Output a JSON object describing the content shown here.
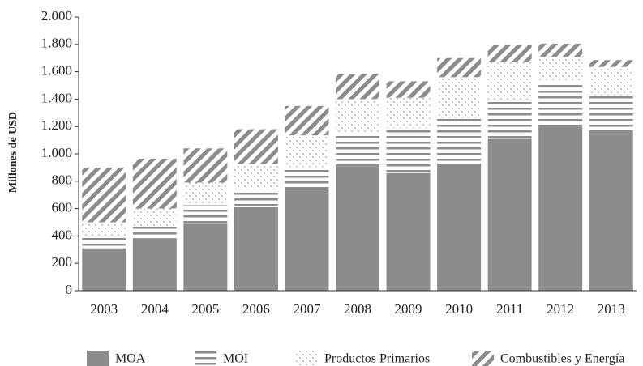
{
  "chart_data": {
    "type": "stacked-bar",
    "y_label": "Millones de USD",
    "categories": [
      "2003",
      "2004",
      "2005",
      "2006",
      "2007",
      "2008",
      "2009",
      "2010",
      "2011",
      "2012",
      "2013"
    ],
    "series": [
      {
        "name": "MOA",
        "color": "#8c8c8c",
        "pattern": "solid",
        "values": [
          310,
          380,
          490,
          610,
          740,
          910,
          860,
          930,
          1110,
          1200,
          1160
        ]
      },
      {
        "name": "MOI",
        "color": "#8c8c8c",
        "pattern": "horizontal",
        "values": [
          90,
          90,
          135,
          130,
          165,
          245,
          330,
          330,
          280,
          325,
          265
        ]
      },
      {
        "name": "Productos Primarios",
        "color": "#9a9a9a",
        "pattern": "dots",
        "values": [
          100,
          130,
          165,
          185,
          230,
          245,
          220,
          300,
          280,
          185,
          210
        ]
      },
      {
        "name": "Combustibles y Energía",
        "color": "#8c8c8c",
        "pattern": "diagonal",
        "values": [
          400,
          365,
          250,
          255,
          215,
          185,
          120,
          140,
          125,
          95,
          50
        ]
      }
    ],
    "ylim": [
      0,
      2000
    ],
    "yticks": [
      0,
      200,
      400,
      600,
      800,
      {
        "value": 1000,
        "label": "1.000"
      },
      {
        "value": 1200,
        "label": "1.200"
      },
      {
        "value": 1400,
        "label": "1.400"
      },
      {
        "value": 1600,
        "label": "1.600"
      },
      {
        "value": 1800,
        "label": "1.800"
      },
      {
        "value": 2000,
        "label": "2.000"
      }
    ],
    "grid": false
  }
}
